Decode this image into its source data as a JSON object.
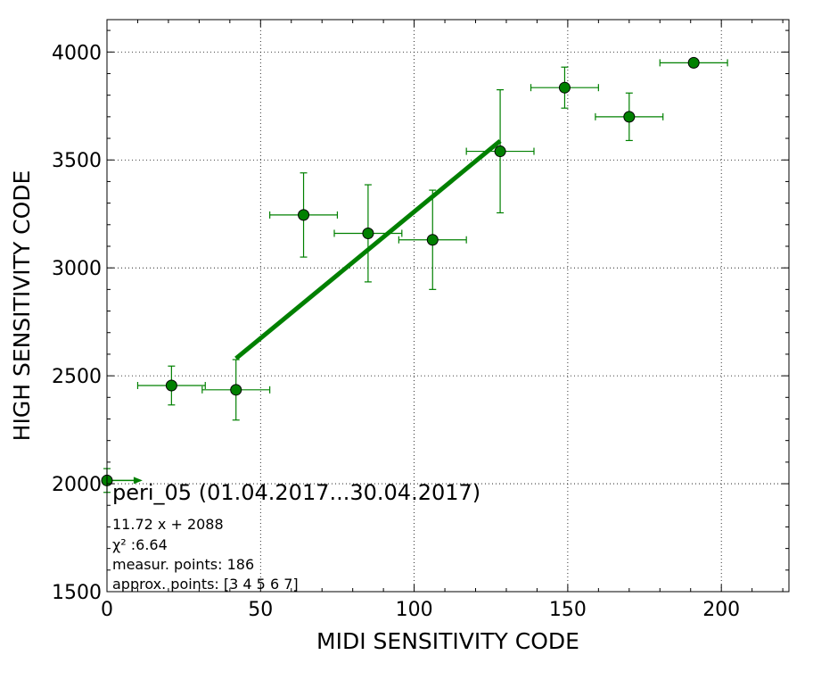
{
  "chart_data": {
    "type": "scatter",
    "xlabel": "MIDI SENSITIVITY CODE",
    "ylabel": "HIGH SENSITIVITY CODE",
    "xlim": [
      0,
      222
    ],
    "ylim": [
      1500,
      4150
    ],
    "x_ticks": [
      0,
      50,
      100,
      150,
      200
    ],
    "y_ticks": [
      1500,
      2000,
      2500,
      3000,
      3500,
      4000
    ],
    "grid": true,
    "marker_color": "#008000",
    "line_color": "#008000",
    "points": [
      {
        "x": 0,
        "y": 2015,
        "xerr": 11,
        "yerr": 55,
        "arrow": true
      },
      {
        "x": 21,
        "y": 2455,
        "xerr": 11,
        "yerr": 90
      },
      {
        "x": 42,
        "y": 2435,
        "xerr": 11,
        "yerr": 140
      },
      {
        "x": 64,
        "y": 3245,
        "xerr": 11,
        "yerr": 195
      },
      {
        "x": 85,
        "y": 3160,
        "xerr": 11,
        "yerr": 225
      },
      {
        "x": 106,
        "y": 3130,
        "xerr": 11,
        "yerr": 230
      },
      {
        "x": 128,
        "y": 3540,
        "xerr": 11,
        "yerr": 285
      },
      {
        "x": 149,
        "y": 3835,
        "xerr": 11,
        "yerr": 95
      },
      {
        "x": 170,
        "y": 3700,
        "xerr": 11,
        "yerr": 110
      },
      {
        "x": 191,
        "y": 3950,
        "xerr": 11,
        "yerr": 0
      }
    ],
    "fit": {
      "slope": 11.72,
      "intercept": 2088,
      "x_range": [
        42,
        128
      ]
    },
    "annotation": {
      "title": "peri_05 (01.04.2017...30.04.2017)",
      "lines": [
        "11.72 x + 2088",
        "χ² :6.64",
        "measur. points: 186",
        "approx. points: [3 4 5 6 7]"
      ]
    }
  }
}
